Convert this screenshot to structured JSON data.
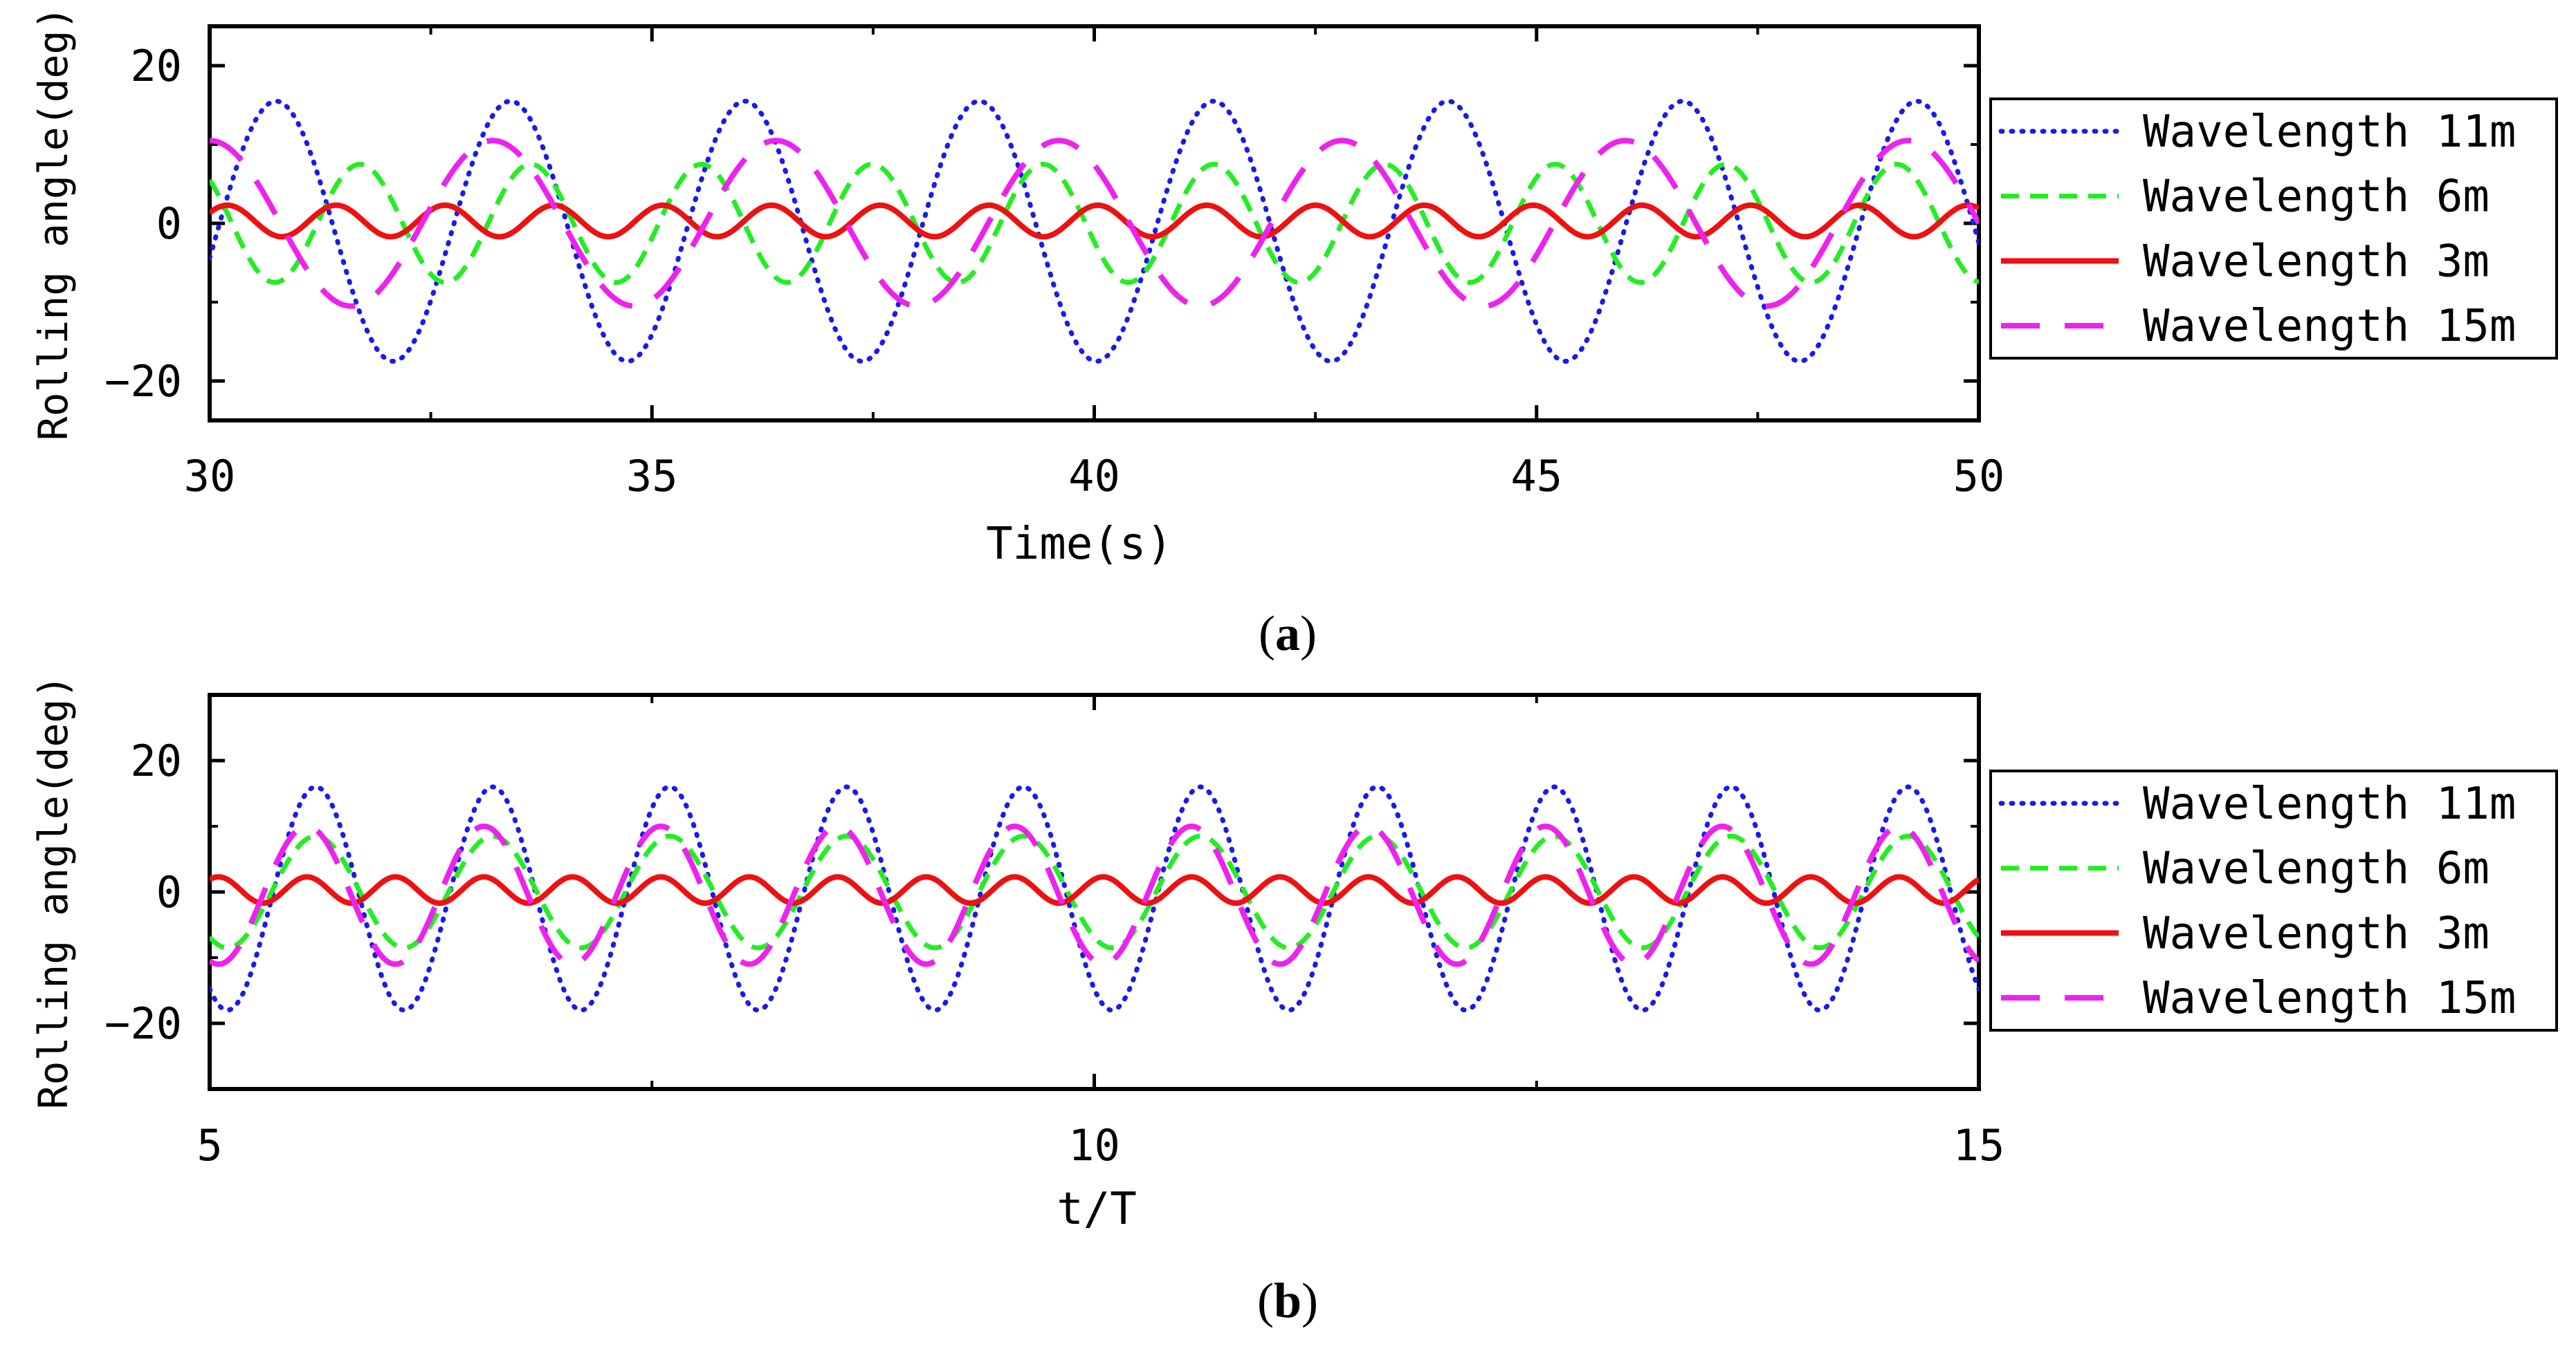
{
  "chart_data": [
    {
      "type": "line",
      "panel_label": "a",
      "title": "",
      "xlabel": "Time(s)",
      "ylabel": "Rolling angle(deg)",
      "xlim": [
        30,
        50
      ],
      "ylim": [
        -25,
        25
      ],
      "xticks": [
        30,
        35,
        40,
        45,
        50
      ],
      "yticks": [
        -20,
        0,
        20
      ],
      "grid": false,
      "legend_position": "outside-right",
      "series": [
        {
          "name": "Wavelength 11m",
          "color": "#1a1aee",
          "style": "dotted",
          "amplitude": 16.5,
          "center": -1,
          "period": 2.65,
          "phase_x": 30.75
        },
        {
          "name": "Wavelength 6m",
          "color": "#22ee22",
          "style": "short-dash",
          "amplitude": 7.5,
          "center": 0,
          "period": 1.93,
          "phase_x": 31.7
        },
        {
          "name": "Wavelength 3m",
          "color": "#ee1111",
          "style": "solid",
          "amplitude": 2,
          "center": 0.3,
          "period": 1.23,
          "phase_x": 30.2
        },
        {
          "name": "Wavelength 15m",
          "color": "#ee22ee",
          "style": "long-dash",
          "amplitude": 10.5,
          "center": 0,
          "period": 3.2,
          "phase_x": 33.2
        }
      ]
    },
    {
      "type": "line",
      "panel_label": "b",
      "title": "",
      "xlabel": "t/T",
      "ylabel": "Rolling angle(deg)",
      "xlim": [
        5,
        15
      ],
      "ylim": [
        -30,
        30
      ],
      "xticks": [
        5,
        10,
        15
      ],
      "yticks": [
        -20,
        0,
        20
      ],
      "grid": false,
      "legend_position": "outside-right",
      "series": [
        {
          "name": "Wavelength 11m",
          "color": "#1a1aee",
          "style": "dotted",
          "amplitude": 17,
          "center": -1,
          "period": 1,
          "phase_x": 5.6
        },
        {
          "name": "Wavelength 6m",
          "color": "#22ee22",
          "style": "short-dash",
          "amplitude": 8.5,
          "center": 0,
          "period": 1,
          "phase_x": 5.6
        },
        {
          "name": "Wavelength 3m",
          "color": "#ee1111",
          "style": "solid",
          "amplitude": 2,
          "center": 0.3,
          "period": 0.5,
          "phase_x": 5.55
        },
        {
          "name": "Wavelength 15m",
          "color": "#ee22ee",
          "style": "long-dash",
          "amplitude": 10.5,
          "center": -0.5,
          "period": 1,
          "phase_x": 5.55
        }
      ]
    }
  ]
}
